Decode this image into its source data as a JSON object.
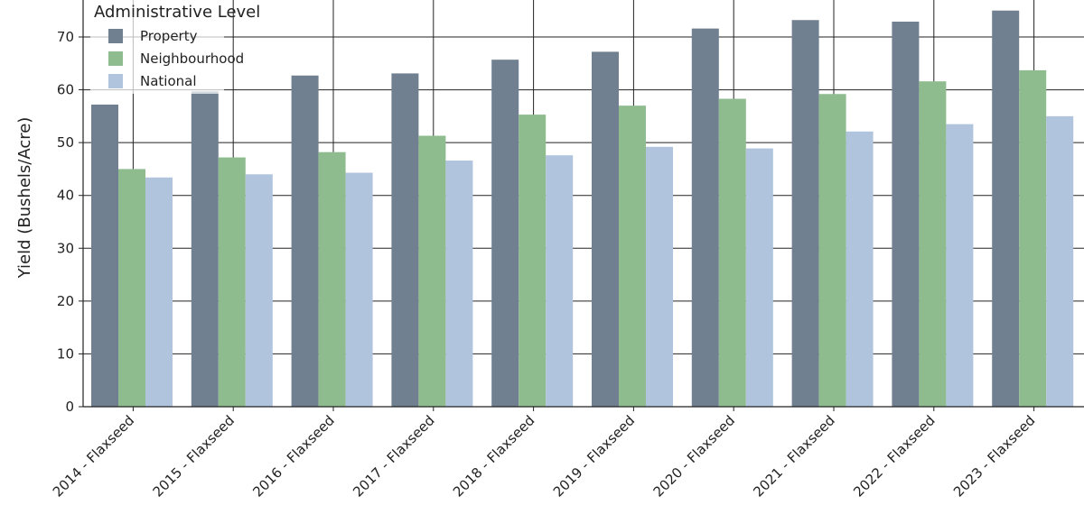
{
  "chart_data": {
    "type": "bar",
    "ylabel": "Yield (Bushels/Acre)",
    "ylim": [
      0,
      77
    ],
    "yticks": [
      0,
      10,
      20,
      30,
      40,
      50,
      60,
      70
    ],
    "grid": true,
    "legend": {
      "title": "Administrative Level",
      "placement": "top-left"
    },
    "categories": [
      "2014 - Flaxseed",
      "2015 - Flaxseed",
      "2016 - Flaxseed",
      "2017 - Flaxseed",
      "2018 - Flaxseed",
      "2019 - Flaxseed",
      "2020 - Flaxseed",
      "2021 - Flaxseed",
      "2022 - Flaxseed",
      "2023 - Flaxseed"
    ],
    "series": [
      {
        "name": "Property",
        "color": "#708090",
        "values": [
          57.2,
          59.7,
          62.7,
          63.1,
          65.7,
          67.2,
          71.6,
          73.2,
          72.9,
          75.0
        ]
      },
      {
        "name": "Neighbourhood",
        "color": "#8fbc8f",
        "values": [
          45.0,
          47.2,
          48.2,
          51.3,
          55.3,
          57.0,
          58.3,
          59.2,
          61.6,
          63.7
        ]
      },
      {
        "name": "National",
        "color": "#b0c4de",
        "values": [
          43.4,
          44.0,
          44.3,
          46.6,
          47.6,
          49.2,
          48.9,
          52.1,
          53.5,
          55.0
        ]
      }
    ]
  }
}
